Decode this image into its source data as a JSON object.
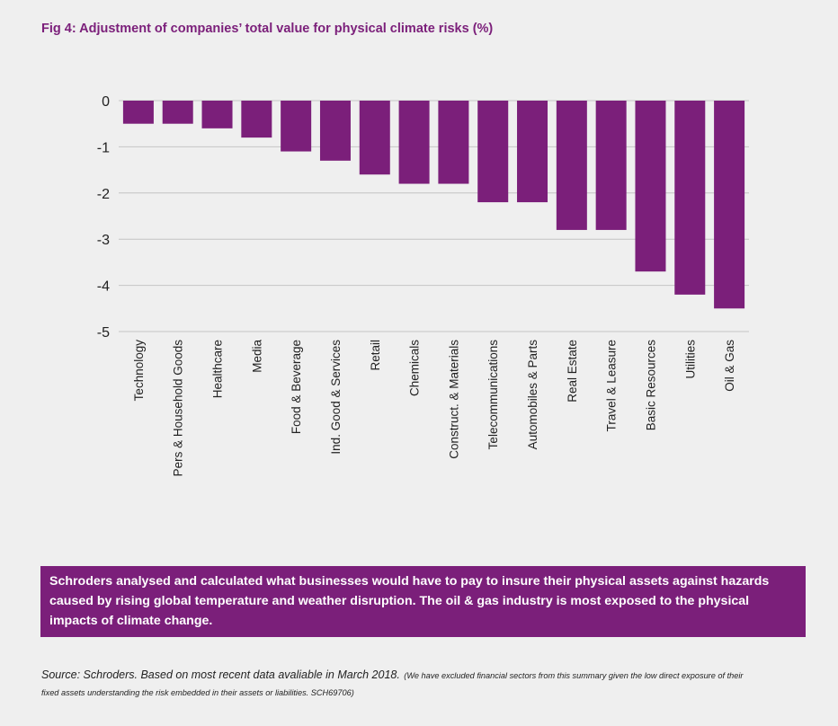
{
  "title": "Fig 4: Adjustment of companies’ total value for physical climate risks (%)",
  "colors": {
    "accent": "#7b1f7a",
    "background": "#efefef",
    "grid": "#c4c4c4",
    "axis_text": "#222222"
  },
  "chart_data": {
    "type": "bar",
    "title": "Fig 4: Adjustment of companies’ total value for physical climate risks (%)",
    "xlabel": "",
    "ylabel": "",
    "categories": [
      "Technology",
      "Pers & Household Goods",
      "Healthcare",
      "Media",
      "Food & Beverage",
      "Ind. Good & Services",
      "Retail",
      "Chemicals",
      "Construct. & Materials",
      "Telecommunications",
      "Automobiles & Parts",
      "Real Estate",
      "Travel & Leasure",
      "Basic Resources",
      "Utilities",
      "Oil & Gas"
    ],
    "values": [
      -0.5,
      -0.5,
      -0.6,
      -0.8,
      -1.1,
      -1.3,
      -1.6,
      -1.8,
      -1.8,
      -2.2,
      -2.2,
      -2.8,
      -2.8,
      -3.7,
      -4.2,
      -4.5
    ],
    "ylim": [
      -5,
      0
    ],
    "yticks": [
      0,
      -1,
      -2,
      -3,
      -4,
      -5
    ],
    "grid": true,
    "legend": "none"
  },
  "callout": {
    "text": "Schroders analysed and calculated what businesses would have to pay to insure their physical assets against hazards caused by rising global temperature and weather disruption. The oil & gas industry is most exposed to the physical impacts of climate change."
  },
  "source": {
    "main": "Source: Schroders. Based on most recent data avaliable in March 2018.",
    "note": "(We have excluded financial sectors from this summary given the low direct exposure of their fixed assets understanding the risk embedded in their assets or liabilities. SCH69706)"
  }
}
